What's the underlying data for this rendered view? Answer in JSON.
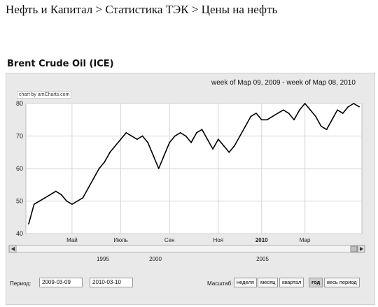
{
  "breadcrumb": {
    "part1": "Нефть и Капитал",
    "sep": ">",
    "part2": "Статистика ТЭК",
    "part3": "Цены на нефть"
  },
  "chart": {
    "title": "Brent Crude Oil (ICE)",
    "range_label": "week of Мар 09, 2009 - week of Мар 08, 2010",
    "credit": "chart by amCharts.com"
  },
  "controls": {
    "period_label": "Период:",
    "from": "2009-03-09",
    "to": "2010-03-10",
    "scale_label": "Масштаб:",
    "buttons": [
      "неделя",
      "месяц",
      "квартал",
      "год",
      "весь период"
    ],
    "active_button": 3
  },
  "navigator": {
    "labels": [
      "1995",
      "2000",
      "2005"
    ]
  },
  "chart_data": {
    "type": "line",
    "ylim": [
      40,
      80
    ],
    "yticks": [
      40,
      50,
      60,
      70,
      80
    ],
    "xtick_labels": [
      "Май",
      "Июль",
      "Сен",
      "Ноя",
      "2010",
      "Мар"
    ],
    "x_week_index_of_ticks": [
      8,
      17,
      26,
      35,
      43,
      51
    ],
    "values": [
      43,
      49,
      50,
      51,
      52,
      53,
      52,
      50,
      49,
      50,
      51,
      54,
      57,
      60,
      62,
      65,
      67,
      69,
      71,
      70,
      69,
      70,
      68,
      64,
      60,
      64,
      68,
      70,
      71,
      70,
      68,
      71,
      72,
      69,
      66,
      69,
      67,
      65,
      67,
      70,
      73,
      76,
      77,
      75,
      75,
      76,
      77,
      78,
      77,
      75,
      78,
      80,
      78,
      76,
      73,
      72,
      75,
      78,
      77,
      79,
      80,
      79
    ],
    "color": "#000000",
    "grid": true
  }
}
